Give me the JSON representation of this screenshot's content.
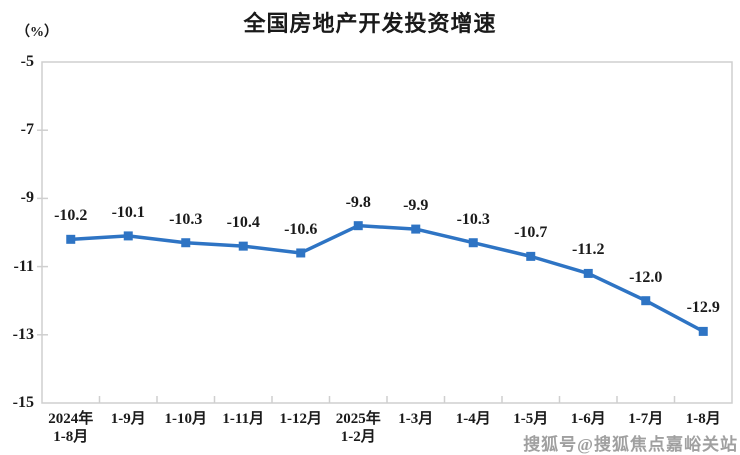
{
  "chart_data": {
    "type": "line",
    "title": "全国房地产开发投资增速",
    "unit_label": "（%）",
    "categories": [
      [
        "2024年",
        "1-8月"
      ],
      [
        "1-9月"
      ],
      [
        "1-10月"
      ],
      [
        "1-11月"
      ],
      [
        "1-12月"
      ],
      [
        "2025年",
        "1-2月"
      ],
      [
        "1-3月"
      ],
      [
        "1-4月"
      ],
      [
        "1-5月"
      ],
      [
        "1-6月"
      ],
      [
        "1-7月"
      ],
      [
        "1-8月"
      ]
    ],
    "values": [
      -10.2,
      -10.1,
      -10.3,
      -10.4,
      -10.6,
      -9.8,
      -9.9,
      -10.3,
      -10.7,
      -11.2,
      -12.0,
      -12.9
    ],
    "point_labels": [
      "-10.2",
      "-10.1",
      "-10.3",
      "-10.4",
      "-10.6",
      "-9.8",
      "-9.9",
      "-10.3",
      "-10.7",
      "-11.2",
      "-12.0",
      "-12.9"
    ],
    "yticks": [
      -5,
      -7,
      -9,
      -11,
      -13,
      -15
    ],
    "ylim": [
      -15,
      -5
    ],
    "grid": false,
    "legend": "none",
    "line_color": "#2E74C4",
    "marker_shape": "square",
    "axis_color": "#cfcfcf",
    "text_color": "#1a1a1a"
  },
  "watermark": {
    "text": "搜狐号@搜狐焦点嘉峪关站",
    "color": "#a0a0a0"
  }
}
